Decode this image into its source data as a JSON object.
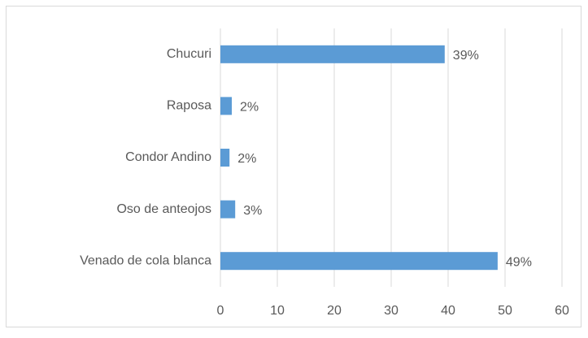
{
  "chart_data": {
    "type": "bar",
    "orientation": "horizontal",
    "categories": [
      "Chucuri",
      "Raposa",
      "Condor Andino",
      "Oso de anteojos",
      "Venado de cola blanca"
    ],
    "values": [
      39.4,
      2,
      1.6,
      2.6,
      48.7
    ],
    "value_labels": [
      "39%",
      "2%",
      "2%",
      "3%",
      "49%"
    ],
    "color": "#5b9bd5",
    "xlim": [
      0,
      60
    ],
    "xticks": [
      0,
      10,
      20,
      30,
      40,
      50,
      60
    ],
    "grid": true
  }
}
